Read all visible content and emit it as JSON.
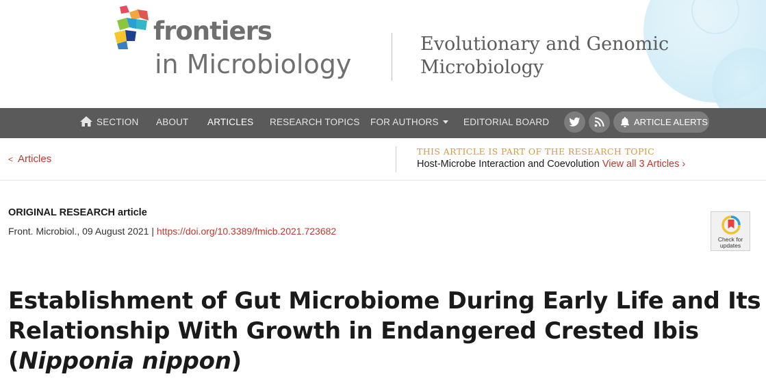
{
  "header": {
    "brand": "frontiers",
    "journal": "in Microbiology",
    "section_line1": "Evolutionary and Genomic",
    "section_line2": "Microbiology"
  },
  "nav": {
    "items": [
      {
        "label": "SECTION",
        "icon": "home-icon"
      },
      {
        "label": "ABOUT"
      },
      {
        "label": "ARTICLES",
        "active": true
      },
      {
        "label": "RESEARCH TOPICS"
      },
      {
        "label": "FOR AUTHORS",
        "dropdown": true
      },
      {
        "label": "EDITORIAL BOARD"
      }
    ],
    "social": [
      "twitter-icon",
      "rss-icon"
    ],
    "alerts_label": "ARTICLE ALERTS"
  },
  "breadcrumb": {
    "back_label": "Articles",
    "topic_label": "THIS ARTICLE IS PART OF THE RESEARCH TOPIC",
    "topic_name": "Host-Microbe Interaction and Coevolution",
    "topic_link": "View all 3 Articles"
  },
  "article": {
    "type": "ORIGINAL RESEARCH article",
    "journal_date": "Front. Microbiol., 09 August 2021",
    "separator": "|",
    "doi": "https://doi.org/10.3389/fmicb.2021.723682",
    "title_main": "Establishment of Gut Microbiome During Early Life and Its Relationship With Growth in Endangered Crested Ibis (",
    "title_italic": "Nipponia nippon",
    "title_end": ")"
  },
  "badge": {
    "line1": "Check for",
    "line2": "updates"
  },
  "colors": {
    "accent_red": "#c0392b",
    "nav_bg": "#5a5a5a",
    "topic_gold": "#d59a3a"
  }
}
